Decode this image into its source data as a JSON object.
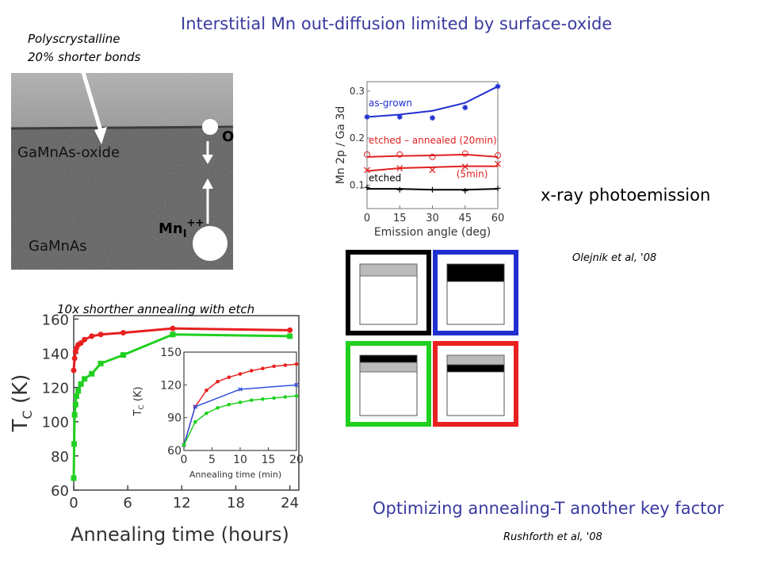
{
  "slide": {
    "title": "Interstitial Mn out-diffusion limited by surface-oxide",
    "subtitle_bottom": "Optimizing annealing-T another key factor",
    "xray_label": "x-ray photoemission",
    "cite_olejnik": "Olejnik et al, '08",
    "cite_rushforth": "Rushforth et al, '08"
  },
  "micrograph": {
    "note_line1": "Polyscrystalline",
    "note_line2": "20% shorter bonds",
    "oxide_label": "GaMnAs-oxide",
    "bulk_label": "GaMnAs",
    "o_label": "O",
    "mn_label": "Mn",
    "mn_sub": "I",
    "mn_sup": "++"
  },
  "colors": {
    "accent_text": "#3a3aa0",
    "black": "#000000",
    "blue": "#2030d0",
    "green": "#20d020",
    "red": "#e82020",
    "gray_layer": "#bbbbbb"
  },
  "legend_boxes": [
    {
      "frame": "black",
      "layers": [
        "gray"
      ]
    },
    {
      "frame": "blue",
      "layers": [
        "black"
      ]
    },
    {
      "frame": "green",
      "layers": [
        "black",
        "gray"
      ]
    },
    {
      "frame": "red",
      "layers": [
        "gray",
        "black"
      ]
    }
  ],
  "chart_data": [
    {
      "id": "photoemission",
      "type": "scatter",
      "xlabel": "Emission angle (deg)",
      "ylabel": "Mn 2p / Ga 3d",
      "xlim": [
        0,
        60
      ],
      "ylim": [
        0.05,
        0.32
      ],
      "xticks": [
        0,
        15,
        30,
        45,
        60
      ],
      "yticks": [
        0.1,
        0.2,
        0.3
      ],
      "series": [
        {
          "name": "as-grown",
          "color": "#2030d0",
          "marker": "*",
          "x": [
            0,
            15,
            30,
            45,
            60
          ],
          "y": [
            0.245,
            0.245,
            0.243,
            0.265,
            0.31
          ],
          "fit": [
            0.245,
            0.25,
            0.258,
            0.275,
            0.31
          ]
        },
        {
          "name": "etched – annealed (20min)",
          "color": "#e02020",
          "marker": "o",
          "x": [
            0,
            15,
            30,
            45,
            60
          ],
          "y": [
            0.165,
            0.165,
            0.16,
            0.167,
            0.163
          ],
          "fit": [
            0.16,
            0.162,
            0.163,
            0.165,
            0.16
          ]
        },
        {
          "name": "(5min)",
          "color": "#e02020",
          "marker": "x",
          "x": [
            0,
            15,
            30,
            45,
            60
          ],
          "y": [
            0.132,
            0.136,
            0.132,
            0.139,
            0.145
          ],
          "fit": [
            0.13,
            0.136,
            0.138,
            0.14,
            0.14
          ]
        },
        {
          "name": "etched",
          "color": "#000000",
          "marker": "+",
          "x": [
            0,
            15,
            30,
            45,
            60
          ],
          "y": [
            0.095,
            0.09,
            0.09,
            0.088,
            0.093
          ],
          "fit": [
            0.092,
            0.092,
            0.09,
            0.09,
            0.092
          ]
        }
      ]
    },
    {
      "id": "tc_hours",
      "type": "line",
      "xlabel": "Annealing time (hours)",
      "ylabel": "T",
      "ylabel_sub": "C",
      "ylabel_unit": " (K)",
      "note": "10x shorther annealing with etch",
      "xlim": [
        0,
        25
      ],
      "ylim": [
        60,
        162
      ],
      "xticks": [
        0,
        6,
        12,
        18,
        24
      ],
      "yticks": [
        60,
        80,
        100,
        120,
        140,
        160
      ],
      "series": [
        {
          "color": "#e82020",
          "marker": "circle",
          "x": [
            0,
            0.1,
            0.2,
            0.3,
            0.5,
            0.8,
            1.2,
            2,
            3,
            5.5,
            11,
            24
          ],
          "y": [
            130,
            137,
            141,
            143,
            145,
            146,
            148,
            150,
            151,
            152,
            154.5,
            153.5
          ]
        },
        {
          "color": "#20d020",
          "marker": "square",
          "x": [
            0,
            0.05,
            0.1,
            0.2,
            0.3,
            0.5,
            0.8,
            1.2,
            2,
            3,
            5.5,
            11,
            24
          ],
          "y": [
            67,
            87,
            104,
            110,
            115,
            118,
            122,
            125,
            128,
            134,
            139,
            151,
            150
          ]
        }
      ]
    },
    {
      "id": "tc_minutes",
      "type": "line",
      "xlabel": "Annealing time (min)",
      "ylabel": "T",
      "ylabel_sub": "C",
      "ylabel_unit": " (K)",
      "xlim": [
        0,
        20
      ],
      "ylim": [
        60,
        150
      ],
      "xticks": [
        0,
        5,
        10,
        15,
        20
      ],
      "yticks": [
        60,
        90,
        120,
        150
      ],
      "series": [
        {
          "color": "#e82020",
          "marker": "circle",
          "x": [
            0,
            2,
            4,
            6,
            8,
            10,
            12,
            14,
            16,
            18,
            20
          ],
          "y": [
            65,
            100,
            115,
            123,
            127,
            130,
            133,
            135,
            137,
            138,
            139
          ]
        },
        {
          "color": "#3050e0",
          "marker": "x",
          "x": [
            0,
            2,
            10,
            20
          ],
          "y": [
            65,
            100,
            116,
            120
          ]
        },
        {
          "color": "#20d020",
          "marker": "circle",
          "x": [
            0,
            2,
            4,
            6,
            8,
            10,
            12,
            14,
            16,
            18,
            20
          ],
          "y": [
            65,
            86,
            94,
            99,
            102,
            104,
            106,
            107,
            108,
            109,
            110
          ]
        }
      ]
    }
  ]
}
